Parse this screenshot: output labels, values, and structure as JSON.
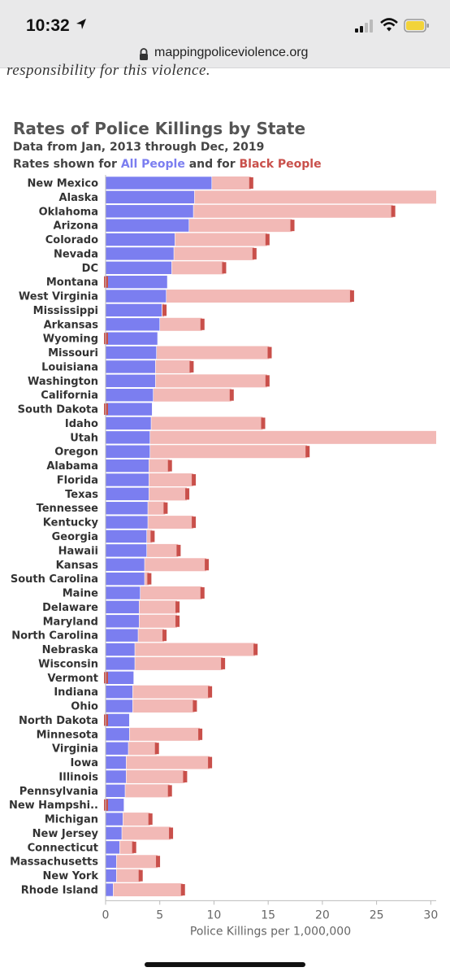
{
  "status_bar": {
    "time": "10:32"
  },
  "url_bar": {
    "domain": "mappingpoliceviolence.org"
  },
  "page": {
    "intro_text": "responsibility for this violence."
  },
  "colors": {
    "all_people": "#7b7ef0",
    "black_people_bar": "#f2b9b6",
    "black_people_marker": "#c9504b"
  },
  "chart_data": {
    "type": "bar",
    "orientation": "horizontal",
    "title": "Rates of Police Killings by State",
    "subtitle": "Data from Jan, 2013 through Dec, 2019",
    "legend_prefix": "Rates shown for",
    "legend_mid": "and for",
    "xlabel": "Police Killings per 1,000,000",
    "xlim": [
      0,
      30.5
    ],
    "xticks": [
      0,
      5,
      10,
      15,
      20,
      25,
      30
    ],
    "categories": [
      "New Mexico",
      "Alaska",
      "Oklahoma",
      "Arizona",
      "Colorado",
      "Nevada",
      "DC",
      "Montana",
      "West Virginia",
      "Mississippi",
      "Arkansas",
      "Wyoming",
      "Missouri",
      "Louisiana",
      "Washington",
      "California",
      "South Dakota",
      "Idaho",
      "Utah",
      "Oregon",
      "Alabama",
      "Florida",
      "Texas",
      "Tennessee",
      "Kentucky",
      "Georgia",
      "Hawaii",
      "Kansas",
      "South Carolina",
      "Maine",
      "Delaware",
      "Maryland",
      "North Carolina",
      "Nebraska",
      "Wisconsin",
      "Vermont",
      "Indiana",
      "Ohio",
      "North Dakota",
      "Minnesota",
      "Virginia",
      "Iowa",
      "Illinois",
      "Pennsylvania",
      "New Hampshi..",
      "Michigan",
      "New Jersey",
      "Connecticut",
      "Massachusetts",
      "New York",
      "Rhode Island"
    ],
    "series": [
      {
        "name": "All People",
        "values": [
          9.8,
          8.2,
          8.1,
          7.7,
          6.4,
          6.3,
          6.1,
          5.7,
          5.6,
          5.2,
          5.0,
          4.8,
          4.7,
          4.6,
          4.6,
          4.4,
          4.3,
          4.2,
          4.1,
          4.1,
          4.0,
          4.0,
          4.0,
          3.9,
          3.9,
          3.8,
          3.8,
          3.6,
          3.6,
          3.2,
          3.1,
          3.1,
          3.0,
          2.7,
          2.7,
          2.6,
          2.5,
          2.5,
          2.2,
          2.2,
          2.1,
          1.9,
          1.9,
          1.8,
          1.7,
          1.6,
          1.5,
          1.3,
          1.0,
          1.0,
          0.7
        ]
      },
      {
        "name": "Black People",
        "values": [
          13.4,
          31.0,
          26.5,
          17.2,
          14.9,
          13.7,
          10.9,
          0,
          22.7,
          5.4,
          8.9,
          0,
          15.1,
          7.9,
          14.9,
          11.6,
          0,
          14.5,
          31.0,
          18.6,
          5.9,
          8.1,
          7.5,
          5.5,
          8.1,
          4.3,
          6.7,
          9.3,
          4.0,
          8.9,
          6.6,
          6.6,
          5.4,
          13.8,
          10.8,
          0,
          9.6,
          8.2,
          0,
          8.7,
          4.7,
          9.6,
          7.3,
          5.9,
          0,
          4.1,
          6.0,
          2.6,
          4.8,
          3.2,
          7.1
        ]
      }
    ],
    "grid": false
  }
}
